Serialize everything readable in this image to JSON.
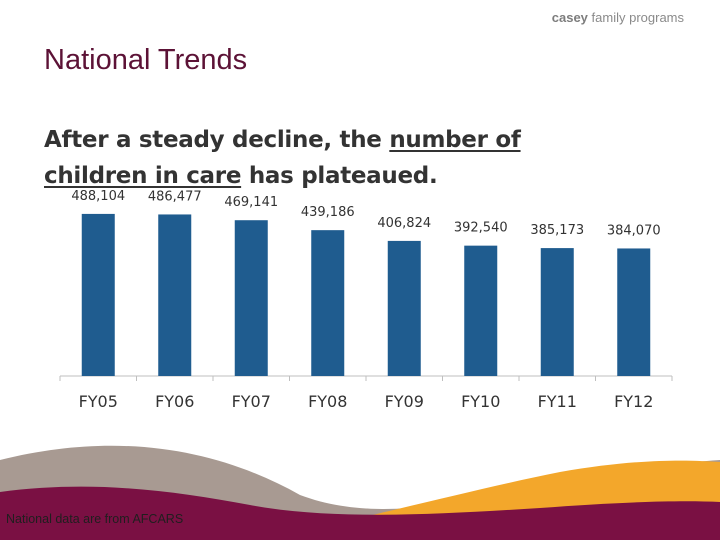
{
  "logo": {
    "bold": "casey",
    "rest": "family programs"
  },
  "header": {
    "title": "National Trends"
  },
  "subtitle": {
    "part1": "After a steady decline, the ",
    "underlined1": "number of",
    "part2": " ",
    "underlined2": "children in care",
    "part3": " has plateaued."
  },
  "chart_data": {
    "type": "bar",
    "categories": [
      "FY05",
      "FY06",
      "FY07",
      "FY08",
      "FY09",
      "FY10",
      "FY11",
      "FY12"
    ],
    "values": [
      488104,
      486477,
      469141,
      439186,
      406824,
      392540,
      385173,
      384070
    ],
    "data_labels": [
      "488,104",
      "486,477",
      "469,141",
      "439,186",
      "406,824",
      "392,540",
      "385,173",
      "384,070"
    ],
    "ylim": [
      0,
      530000
    ],
    "title": "",
    "xlabel": "",
    "ylabel": "",
    "grid": false,
    "bar_color": "#1f5c8f"
  },
  "footer": {
    "note": "National data are from AFCARS"
  },
  "colors": {
    "maroon": "#7a1043",
    "orange": "#f3a72b",
    "gray": "#a89a92",
    "title": "#5c1236"
  }
}
